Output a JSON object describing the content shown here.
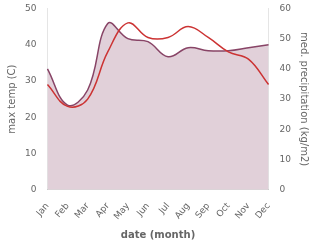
{
  "chart_data": {
    "type": "line",
    "categories": [
      "Jan",
      "Feb",
      "Mar",
      "Apr",
      "May",
      "Jun",
      "Jul",
      "Aug",
      "Sep",
      "Oct",
      "Nov",
      "Dec"
    ],
    "series": [
      {
        "color": "#cc3333",
        "values": [
          29,
          23,
          25,
          38,
          46,
          42,
          42,
          45,
          42,
          38,
          36,
          29
        ]
      },
      {
        "type": "area",
        "axis": "y2",
        "color": "#884466",
        "values": [
          40,
          28,
          33,
          55,
          50,
          49,
          44,
          47,
          46,
          46,
          47,
          48
        ]
      }
    ],
    "xlabel": "date (month)",
    "ylabel": "max temp (C)",
    "y2label": "med. precipitation (kg/m2)",
    "ylim": [
      0,
      50
    ],
    "yticks": [
      0,
      10,
      20,
      30,
      40,
      50
    ],
    "y2lim": [
      0,
      60
    ],
    "y2ticks": [
      0,
      10,
      20,
      30,
      40,
      50,
      60
    ],
    "grid": false
  }
}
